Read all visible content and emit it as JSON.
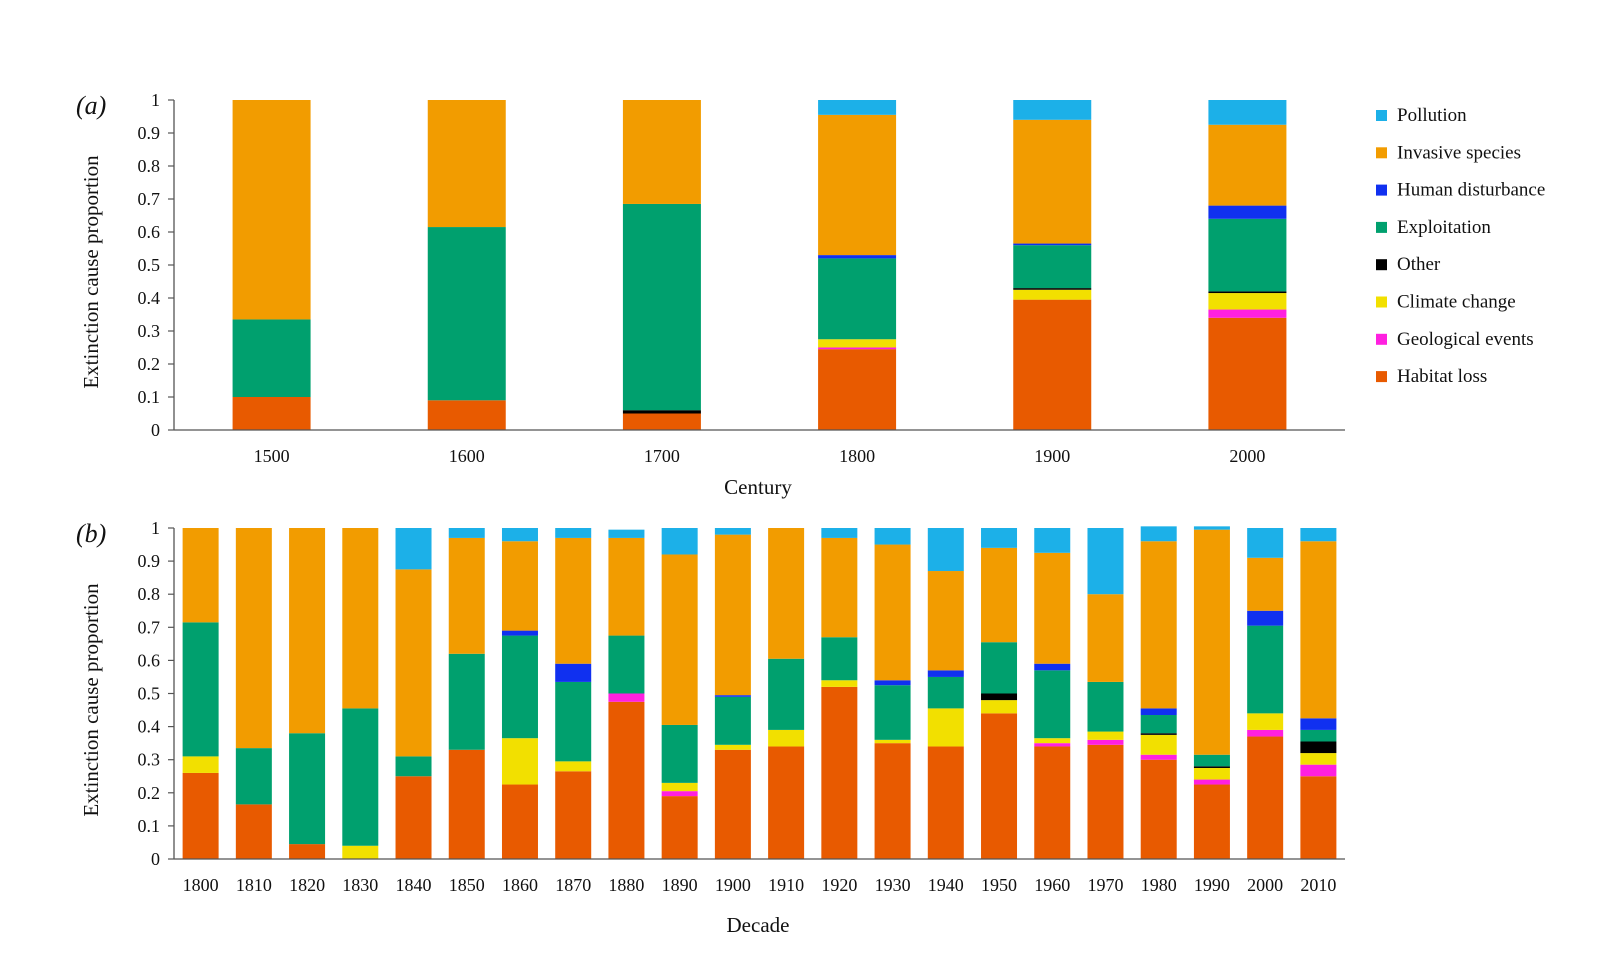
{
  "chart_data": [
    {
      "type": "bar",
      "stacked": true,
      "panel_label": "(a)",
      "xlabel": "Century",
      "ylabel": "Extinction cause proportion",
      "ylim": [
        0,
        1
      ],
      "yticks": [
        "0",
        "0.1",
        "0.2",
        "0.3",
        "0.4",
        "0.5",
        "0.6",
        "0.7",
        "0.8",
        "0.9",
        "1"
      ],
      "categories": [
        "1500",
        "1600",
        "1700",
        "1800",
        "1900",
        "2000"
      ],
      "series": [
        {
          "name": "Habitat loss",
          "color": "#E85A00",
          "values": [
            0.1,
            0.09,
            0.05,
            0.245,
            0.395,
            0.34
          ]
        },
        {
          "name": "Geological events",
          "color": "#FF20E0",
          "values": [
            0,
            0,
            0,
            0.005,
            0,
            0.025
          ]
        },
        {
          "name": "Climate change",
          "color": "#F2E000",
          "values": [
            0,
            0,
            0,
            0.025,
            0.03,
            0.05
          ]
        },
        {
          "name": "Other",
          "color": "#000000",
          "values": [
            0,
            0,
            0.01,
            0,
            0.005,
            0.005
          ]
        },
        {
          "name": "Exploitation",
          "color": "#00A06E",
          "values": [
            0.235,
            0.525,
            0.625,
            0.245,
            0.13,
            0.22
          ]
        },
        {
          "name": "Human disturbance",
          "color": "#1030F0",
          "values": [
            0,
            0,
            0,
            0.01,
            0.005,
            0.04
          ]
        },
        {
          "name": "Invasive species",
          "color": "#F29C00",
          "values": [
            0.665,
            0.385,
            0.315,
            0.425,
            0.375,
            0.245
          ]
        },
        {
          "name": "Pollution",
          "color": "#1CB0E8",
          "values": [
            0,
            0,
            0,
            0.045,
            0.06,
            0.075
          ]
        }
      ]
    },
    {
      "type": "bar",
      "stacked": true,
      "panel_label": "(b)",
      "xlabel": "Decade",
      "ylabel": "Extinction cause proportion",
      "ylim": [
        0,
        1
      ],
      "yticks": [
        "0",
        "0.1",
        "0.2",
        "0.3",
        "0.4",
        "0.5",
        "0.6",
        "0.7",
        "0.8",
        "0.9",
        "1"
      ],
      "categories": [
        "1800",
        "1810",
        "1820",
        "1830",
        "1840",
        "1850",
        "1860",
        "1870",
        "1880",
        "1890",
        "1900",
        "1910",
        "1920",
        "1930",
        "1940",
        "1950",
        "1960",
        "1970",
        "1980",
        "1990",
        "2000",
        "2010"
      ],
      "series": [
        {
          "name": "Habitat loss",
          "color": "#E85A00",
          "values": [
            0.26,
            0.165,
            0.045,
            0,
            0.25,
            0.33,
            0.225,
            0.265,
            0.475,
            0.19,
            0.33,
            0.34,
            0.52,
            0.35,
            0.34,
            0.44,
            0.34,
            0.345,
            0.3,
            0.225,
            0.37,
            0.25
          ]
        },
        {
          "name": "Geological events",
          "color": "#FF20E0",
          "values": [
            0,
            0,
            0,
            0,
            0,
            0,
            0,
            0,
            0.025,
            0.015,
            0,
            0,
            0,
            0,
            0,
            0,
            0.01,
            0.015,
            0.015,
            0.015,
            0.02,
            0.035
          ]
        },
        {
          "name": "Climate change",
          "color": "#F2E000",
          "values": [
            0.05,
            0,
            0,
            0.04,
            0,
            0,
            0.14,
            0.03,
            0,
            0.025,
            0.015,
            0.05,
            0.02,
            0.01,
            0.115,
            0.04,
            0.015,
            0.025,
            0.06,
            0.035,
            0.05,
            0.035
          ]
        },
        {
          "name": "Other",
          "color": "#000000",
          "values": [
            0,
            0,
            0,
            0,
            0,
            0,
            0,
            0,
            0,
            0,
            0,
            0,
            0,
            0,
            0,
            0.02,
            0,
            0,
            0.005,
            0.005,
            0,
            0.035
          ]
        },
        {
          "name": "Exploitation",
          "color": "#00A06E",
          "values": [
            0.405,
            0.17,
            0.335,
            0.415,
            0.06,
            0.29,
            0.31,
            0.24,
            0.175,
            0.175,
            0.145,
            0.215,
            0.13,
            0.165,
            0.095,
            0.155,
            0.205,
            0.15,
            0.055,
            0.035,
            0.265,
            0.035
          ]
        },
        {
          "name": "Human disturbance",
          "color": "#1030F0",
          "values": [
            0,
            0,
            0,
            0,
            0,
            0,
            0.015,
            0.055,
            0,
            0,
            0.005,
            0,
            0,
            0.015,
            0.02,
            0,
            0.02,
            0,
            0.02,
            0,
            0.045,
            0.035
          ]
        },
        {
          "name": "Invasive species",
          "color": "#F29C00",
          "values": [
            0.285,
            0.665,
            0.62,
            0.545,
            0.565,
            0.35,
            0.27,
            0.38,
            0.295,
            0.515,
            0.485,
            0.395,
            0.3,
            0.41,
            0.3,
            0.285,
            0.335,
            0.265,
            0.505,
            0.68,
            0.16,
            0.535
          ]
        },
        {
          "name": "Pollution",
          "color": "#1CB0E8",
          "values": [
            0,
            0,
            0,
            0,
            0.125,
            0.03,
            0.04,
            0.03,
            0.025,
            0.08,
            0.02,
            0,
            0.03,
            0.05,
            0.13,
            0.06,
            0.075,
            0.2,
            0.045,
            0.01,
            0.09,
            0.04
          ]
        }
      ]
    }
  ],
  "legend": [
    {
      "label": "Pollution",
      "color": "#1CB0E8"
    },
    {
      "label": "Invasive species",
      "color": "#F29C00"
    },
    {
      "label": "Human disturbance",
      "color": "#1030F0"
    },
    {
      "label": "Exploitation",
      "color": "#00A06E"
    },
    {
      "label": "Other",
      "color": "#000000"
    },
    {
      "label": "Climate change",
      "color": "#F2E000"
    },
    {
      "label": "Geological events",
      "color": "#FF20E0"
    },
    {
      "label": "Habitat loss",
      "color": "#E85A00"
    }
  ]
}
